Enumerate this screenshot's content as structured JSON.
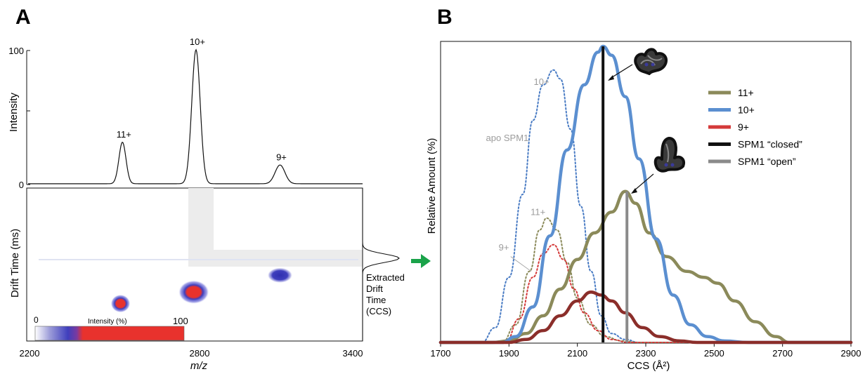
{
  "panel_a": {
    "label": "A",
    "ms": {
      "ylabel": "Intensity",
      "y_ticks": [
        "100",
        "0"
      ],
      "peaks": [
        {
          "label": "11+",
          "mz": 2545,
          "intensity": 31
        },
        {
          "label": "10+",
          "mz": 2818,
          "intensity": 100
        },
        {
          "label": "9+",
          "mz": 3130,
          "intensity": 14
        }
      ]
    },
    "dt": {
      "ylabel": "Drift Time (ms)",
      "colorbar": {
        "label": "Intensity (%)",
        "min_label": "0",
        "max_label": "100"
      },
      "extracted_label": [
        "Extracted",
        "Drift",
        "Time",
        "(CCS)"
      ],
      "spots": [
        {
          "mz": 2543,
          "drift_level": 0.245,
          "max_intensity": 100
        },
        {
          "mz": 2815,
          "drift_level": 0.32,
          "max_intensity": 100
        },
        {
          "mz": 3135,
          "drift_level": 0.43,
          "max_intensity": 55
        }
      ]
    },
    "xlabel": "m/z",
    "x_ticks": [
      "2200",
      "2800",
      "3400"
    ],
    "xlim": [
      2200,
      3400
    ],
    "colors": {
      "blue": "#3f3fbd",
      "red": "#e8322d",
      "grey_band": "#ececec"
    }
  },
  "panel_b": {
    "label": "B",
    "chart_data": {
      "type": "line",
      "xlabel": "CCS (Å²)",
      "ylabel": "Relative Amount (%)",
      "xlim": [
        1700,
        2900
      ],
      "ylim": [
        0,
        100
      ],
      "x_ticks": [
        "1700",
        "1900",
        "2100",
        "2300",
        "2500",
        "2700",
        "2900"
      ],
      "legend_position": "top-right",
      "series": [
        {
          "name": "11+",
          "color": "#8b8a5a",
          "style": "solid",
          "points": [
            [
              1700,
              0
            ],
            [
              1850,
              0
            ],
            [
              1900,
              0.5
            ],
            [
              1950,
              3
            ],
            [
              2000,
              9
            ],
            [
              2050,
              18
            ],
            [
              2100,
              28
            ],
            [
              2150,
              37
            ],
            [
              2200,
              44
            ],
            [
              2240,
              51
            ],
            [
              2270,
              47
            ],
            [
              2310,
              37
            ],
            [
              2360,
              29
            ],
            [
              2420,
              24
            ],
            [
              2470,
              22
            ],
            [
              2510,
              20
            ],
            [
              2560,
              14
            ],
            [
              2620,
              7
            ],
            [
              2680,
              2
            ],
            [
              2720,
              0
            ],
            [
              2900,
              0
            ]
          ]
        },
        {
          "name": "10+",
          "color": "#5b8fd0",
          "style": "solid",
          "points": [
            [
              1700,
              0
            ],
            [
              1880,
              0
            ],
            [
              1920,
              2
            ],
            [
              1970,
              12
            ],
            [
              2020,
              36
            ],
            [
              2070,
              65
            ],
            [
              2120,
              87
            ],
            [
              2160,
              98
            ],
            [
              2175,
              100
            ],
            [
              2200,
              97
            ],
            [
              2240,
              83
            ],
            [
              2280,
              62
            ],
            [
              2330,
              35
            ],
            [
              2380,
              16
            ],
            [
              2430,
              6
            ],
            [
              2480,
              2
            ],
            [
              2530,
              0.5
            ],
            [
              2600,
              0
            ],
            [
              2900,
              0
            ]
          ]
        },
        {
          "name": "9+",
          "color": "#8b2e2a",
          "style": "solid",
          "points": [
            [
              1700,
              0
            ],
            [
              1900,
              0
            ],
            [
              1950,
              1
            ],
            [
              2000,
              4
            ],
            [
              2050,
              9
            ],
            [
              2100,
              14
            ],
            [
              2140,
              17
            ],
            [
              2170,
              16
            ],
            [
              2200,
              14
            ],
            [
              2240,
              10
            ],
            [
              2290,
              5
            ],
            [
              2340,
              2
            ],
            [
              2400,
              0.5
            ],
            [
              2450,
              0
            ],
            [
              2900,
              0
            ]
          ]
        },
        {
          "name": "",
          "color": "#4a7cc4",
          "style": "dotted",
          "points": [
            [
              1700,
              0
            ],
            [
              1820,
              0
            ],
            [
              1860,
              5
            ],
            [
              1900,
              22
            ],
            [
              1940,
              50
            ],
            [
              1970,
              75
            ],
            [
              2000,
              87
            ],
            [
              2030,
              92
            ],
            [
              2050,
              89
            ],
            [
              2080,
              72
            ],
            [
              2110,
              46
            ],
            [
              2140,
              24
            ],
            [
              2170,
              9
            ],
            [
              2200,
              3
            ],
            [
              2240,
              1
            ],
            [
              2280,
              0
            ],
            [
              2900,
              0
            ]
          ]
        },
        {
          "name": "",
          "color": "#8b8a5a",
          "style": "dotted",
          "points": [
            [
              1700,
              0
            ],
            [
              1880,
              0
            ],
            [
              1920,
              6
            ],
            [
              1960,
              24
            ],
            [
              1990,
              38
            ],
            [
              2010,
              42
            ],
            [
              2040,
              38
            ],
            [
              2070,
              27
            ],
            [
              2100,
              15
            ],
            [
              2140,
              6
            ],
            [
              2180,
              2
            ],
            [
              2230,
              0.5
            ],
            [
              2280,
              0
            ],
            [
              2900,
              0
            ]
          ]
        },
        {
          "name": "",
          "color": "#d43a3a",
          "style": "dotted",
          "points": [
            [
              1700,
              0
            ],
            [
              1890,
              0
            ],
            [
              1930,
              8
            ],
            [
              1970,
              22
            ],
            [
              2000,
              30
            ],
            [
              2030,
              33
            ],
            [
              2060,
              28
            ],
            [
              2090,
              18
            ],
            [
              2120,
              10
            ],
            [
              2160,
              4
            ],
            [
              2200,
              1
            ],
            [
              2250,
              0
            ],
            [
              2900,
              0
            ]
          ]
        }
      ],
      "vertical_lines": [
        {
          "name": "SPM1 “closed”",
          "x": 2175,
          "y_top": 100,
          "color": "#111111"
        },
        {
          "name": "SPM1 “open”",
          "x": 2245,
          "y_top": 51,
          "color": "#8a8a8a"
        }
      ],
      "legend": [
        {
          "label": "11+",
          "color": "#8b8a5a"
        },
        {
          "label": "10+",
          "color": "#5b8fd0"
        },
        {
          "label": "9+",
          "color": "#d43a3a"
        },
        {
          "label": "SPM1 “closed”",
          "color": "#111111"
        },
        {
          "label": "SPM1 “open”",
          "color": "#8a8a8a"
        }
      ],
      "annotations": [
        {
          "text": "10+",
          "x": 1995,
          "y": 87,
          "color": "#9c9c9c"
        },
        {
          "text": "apo SPM1",
          "x": 1895,
          "y": 68,
          "color": "#9c9c9c"
        },
        {
          "text": "11+",
          "x": 1985,
          "y": 43,
          "color": "#9c9c9c"
        },
        {
          "text": "9+",
          "x": 1885,
          "y": 31,
          "color": "#9c9c9c"
        }
      ]
    }
  }
}
